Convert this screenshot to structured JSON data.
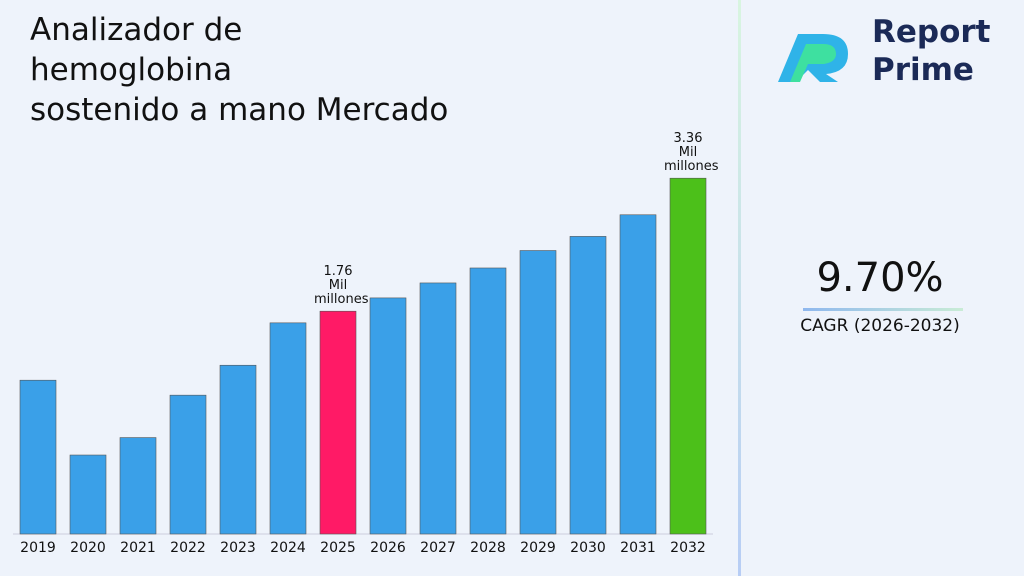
{
  "chart_data": {
    "type": "bar",
    "title": [
      "Analizador de",
      "hemoglobina",
      "sostenido a mano Mercado"
    ],
    "categories": [
      "2019",
      "2020",
      "2021",
      "2022",
      "2023",
      "2024",
      "2025",
      "2026",
      "2027",
      "2028",
      "2029",
      "2030",
      "2031",
      "2032"
    ],
    "values": [
      0.93,
      0.03,
      0.24,
      0.75,
      1.11,
      1.62,
      1.76,
      1.92,
      2.1,
      2.28,
      2.49,
      2.66,
      2.92,
      3.36
    ],
    "value_labels": [
      null,
      null,
      null,
      null,
      null,
      null,
      "1.76 Mil millones",
      null,
      null,
      null,
      null,
      null,
      null,
      "3.36 Mil millones"
    ],
    "colors": [
      "#3aa0e8",
      "#3aa0e8",
      "#3aa0e8",
      "#3aa0e8",
      "#3aa0e8",
      "#3aa0e8",
      "#ff1a66",
      "#3aa0e8",
      "#3aa0e8",
      "#3aa0e8",
      "#3aa0e8",
      "#3aa0e8",
      "#3aa0e8",
      "#4cc01a"
    ],
    "ylim": [
      -0.92,
      4.0
    ]
  },
  "brand": {
    "line1": "Report",
    "line2": "Prime"
  },
  "cagr": {
    "value": "9.70%",
    "label": "CAGR (2026-2032)"
  }
}
